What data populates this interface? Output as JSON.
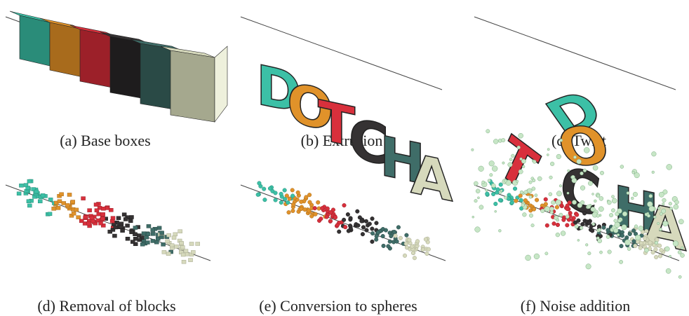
{
  "panels": [
    {
      "caption": "(a) Base boxes"
    },
    {
      "caption": "(b) Extrusion"
    },
    {
      "caption": "(c) Twist"
    },
    {
      "caption": "(d) Removal of blocks"
    },
    {
      "caption": "(e) Conversion to spheres"
    },
    {
      "caption": "(f) Noise addition"
    }
  ],
  "letters": [
    "D",
    "O",
    "T",
    "C",
    "H",
    "A"
  ]
}
